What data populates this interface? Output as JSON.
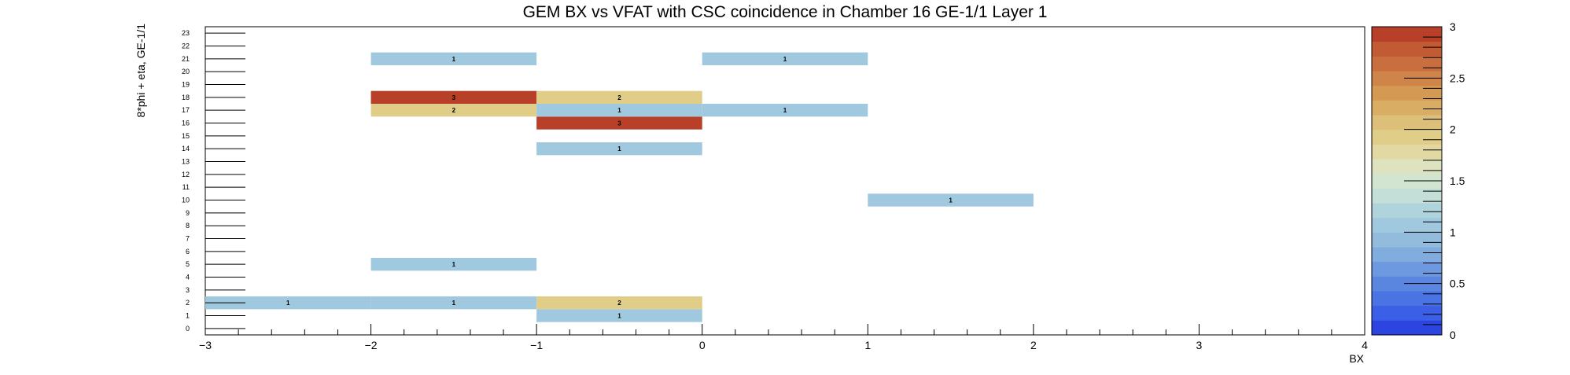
{
  "chart_data": {
    "type": "heatmap",
    "title": "GEM BX vs VFAT with CSC coincidence in Chamber 16 GE-1/1 Layer 1",
    "xlabel": "BX",
    "ylabel": "8*phi + eta, GE-1/1",
    "xlim": [
      -3,
      4
    ],
    "ylim": [
      0,
      24
    ],
    "x_ticks": [
      -3,
      -2,
      -1,
      0,
      1,
      2,
      3,
      4
    ],
    "x_tick_labels": [
      "−3",
      "−2",
      "−1",
      "0",
      "1",
      "2",
      "3",
      "4"
    ],
    "y_tick_labels": [
      "0",
      "1",
      "2",
      "3",
      "4",
      "5",
      "6",
      "7",
      "8",
      "9",
      "10",
      "11",
      "12",
      "13",
      "14",
      "15",
      "16",
      "17",
      "18",
      "19",
      "20",
      "21",
      "22",
      "23"
    ],
    "x_bins": [
      -3,
      -2,
      -1,
      0,
      1,
      2,
      3,
      4
    ],
    "cells": [
      {
        "x": -2.5,
        "y": 2,
        "value": 1
      },
      {
        "x": -1.5,
        "y": 2,
        "value": 1
      },
      {
        "x": -0.5,
        "y": 2,
        "value": 2
      },
      {
        "x": -0.5,
        "y": 1,
        "value": 1
      },
      {
        "x": -1.5,
        "y": 5,
        "value": 1
      },
      {
        "x": 1.5,
        "y": 10,
        "value": 1
      },
      {
        "x": -0.5,
        "y": 14,
        "value": 1
      },
      {
        "x": -0.5,
        "y": 16,
        "value": 3
      },
      {
        "x": -1.5,
        "y": 17,
        "value": 2
      },
      {
        "x": -0.5,
        "y": 17,
        "value": 1
      },
      {
        "x": 0.5,
        "y": 17,
        "value": 1
      },
      {
        "x": -1.5,
        "y": 18,
        "value": 3
      },
      {
        "x": -0.5,
        "y": 18,
        "value": 2
      },
      {
        "x": -1.5,
        "y": 21,
        "value": 1
      },
      {
        "x": 0.5,
        "y": 21,
        "value": 1
      }
    ],
    "zlim": [
      0,
      3
    ],
    "z_ticks": [
      0,
      0.5,
      1,
      1.5,
      2,
      2.5,
      3
    ],
    "z_tick_labels": [
      "0",
      "0.5",
      "1",
      "1.5",
      "2",
      "2.5",
      "3"
    ],
    "palette": [
      "#2c45e0",
      "#3b5fe6",
      "#4a73e3",
      "#5b86e0",
      "#6d99e0",
      "#80acde",
      "#92bbdc",
      "#a0c9df",
      "#b0d4dc",
      "#c4dfd8",
      "#d2e5d0",
      "#dde2bf",
      "#e2d9a2",
      "#dfcd88",
      "#dcc079",
      "#d9ae64",
      "#d49a54",
      "#cf8549",
      "#c96f3f",
      "#c25a34",
      "#b83f28"
    ],
    "grid": false,
    "legend": "colorbar-right"
  }
}
